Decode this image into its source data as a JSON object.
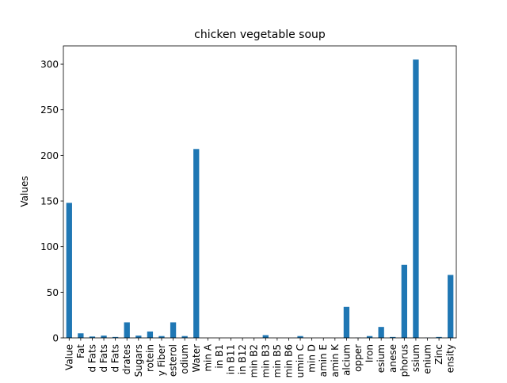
{
  "chart_data": {
    "type": "bar",
    "title": "chicken vegetable soup",
    "xlabel": "",
    "ylabel": "Values",
    "ylim": [
      0,
      320
    ],
    "yticks": [
      0,
      50,
      100,
      150,
      200,
      250,
      300
    ],
    "grid": false,
    "legend": "none",
    "bar_color": "#1f77b4",
    "categories": [
      "Value",
      "Fat",
      "d Fats",
      "d Fats",
      "d Fats",
      "drates",
      "Sugars",
      "rotein",
      "y Fiber",
      "esterol",
      "odium",
      "Water",
      "min A",
      "in B1",
      "in B11",
      "in B12",
      "min B2",
      "min B3",
      "min B5",
      "min B6",
      "umin C",
      "min D",
      "amin E",
      "amin K",
      "alcium",
      "opper",
      "Iron",
      "esium",
      "anese",
      "phorus",
      "ssium",
      "enium",
      "Zinc",
      "ensity"
    ],
    "values": [
      148,
      5,
      1.5,
      2.5,
      1,
      17,
      2.5,
      7,
      2,
      17,
      2,
      207,
      0,
      0,
      0,
      0,
      0,
      3,
      0,
      0,
      2,
      0,
      0,
      0,
      34,
      0.2,
      2,
      12,
      1,
      80,
      305,
      0.2,
      1,
      69
    ]
  }
}
